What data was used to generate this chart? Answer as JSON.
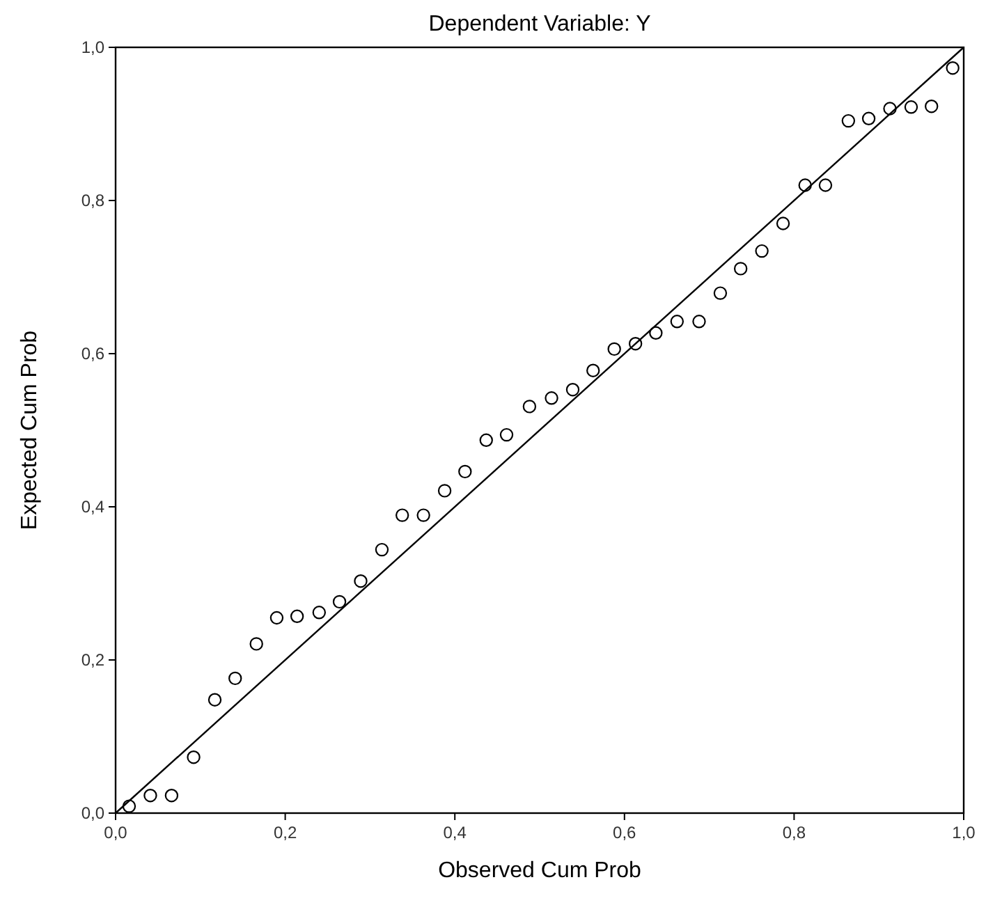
{
  "chart_data": {
    "type": "scatter",
    "title": "Dependent Variable: Y",
    "xlabel": "Observed Cum Prob",
    "ylabel": "Expected Cum Prob",
    "xlim": [
      0,
      1
    ],
    "ylim": [
      0,
      1
    ],
    "xticks": [
      {
        "value": 0,
        "label": "0,0"
      },
      {
        "value": 0.2,
        "label": "0,2"
      },
      {
        "value": 0.4,
        "label": "0,4"
      },
      {
        "value": 0.6,
        "label": "0,6"
      },
      {
        "value": 0.8,
        "label": "0,8"
      },
      {
        "value": 1,
        "label": "1,0"
      }
    ],
    "yticks": [
      {
        "value": 0,
        "label": "0,0"
      },
      {
        "value": 0.2,
        "label": "0,2"
      },
      {
        "value": 0.4,
        "label": "0,4"
      },
      {
        "value": 0.6,
        "label": "0,6"
      },
      {
        "value": 0.8,
        "label": "0,8"
      },
      {
        "value": 1,
        "label": "1,0"
      }
    ],
    "grid": false,
    "series": [
      {
        "color": "#000000",
        "marker": "circle",
        "x": [
          0.016,
          0.041,
          0.066,
          0.092,
          0.117,
          0.141,
          0.166,
          0.19,
          0.214,
          0.24,
          0.264,
          0.289,
          0.314,
          0.338,
          0.363,
          0.388,
          0.412,
          0.437,
          0.461,
          0.488,
          0.514,
          0.539,
          0.563,
          0.588,
          0.613,
          0.637,
          0.662,
          0.688,
          0.713,
          0.737,
          0.762,
          0.787,
          0.813,
          0.837,
          0.864,
          0.888,
          0.913,
          0.938,
          0.962,
          0.987
        ],
        "values": [
          0.009,
          0.023,
          0.023,
          0.073,
          0.148,
          0.176,
          0.221,
          0.255,
          0.257,
          0.262,
          0.276,
          0.303,
          0.344,
          0.389,
          0.389,
          0.421,
          0.446,
          0.487,
          0.494,
          0.531,
          0.542,
          0.553,
          0.578,
          0.606,
          0.613,
          0.627,
          0.642,
          0.642,
          0.679,
          0.711,
          0.734,
          0.77,
          0.82,
          0.82,
          0.904,
          0.907,
          0.92,
          0.922,
          0.923,
          0.973
        ]
      },
      {
        "type": "line",
        "color": "#000000",
        "x": [
          0,
          1
        ],
        "values": [
          0,
          1
        ],
        "line_style": "solid",
        "marker": "none"
      }
    ]
  }
}
